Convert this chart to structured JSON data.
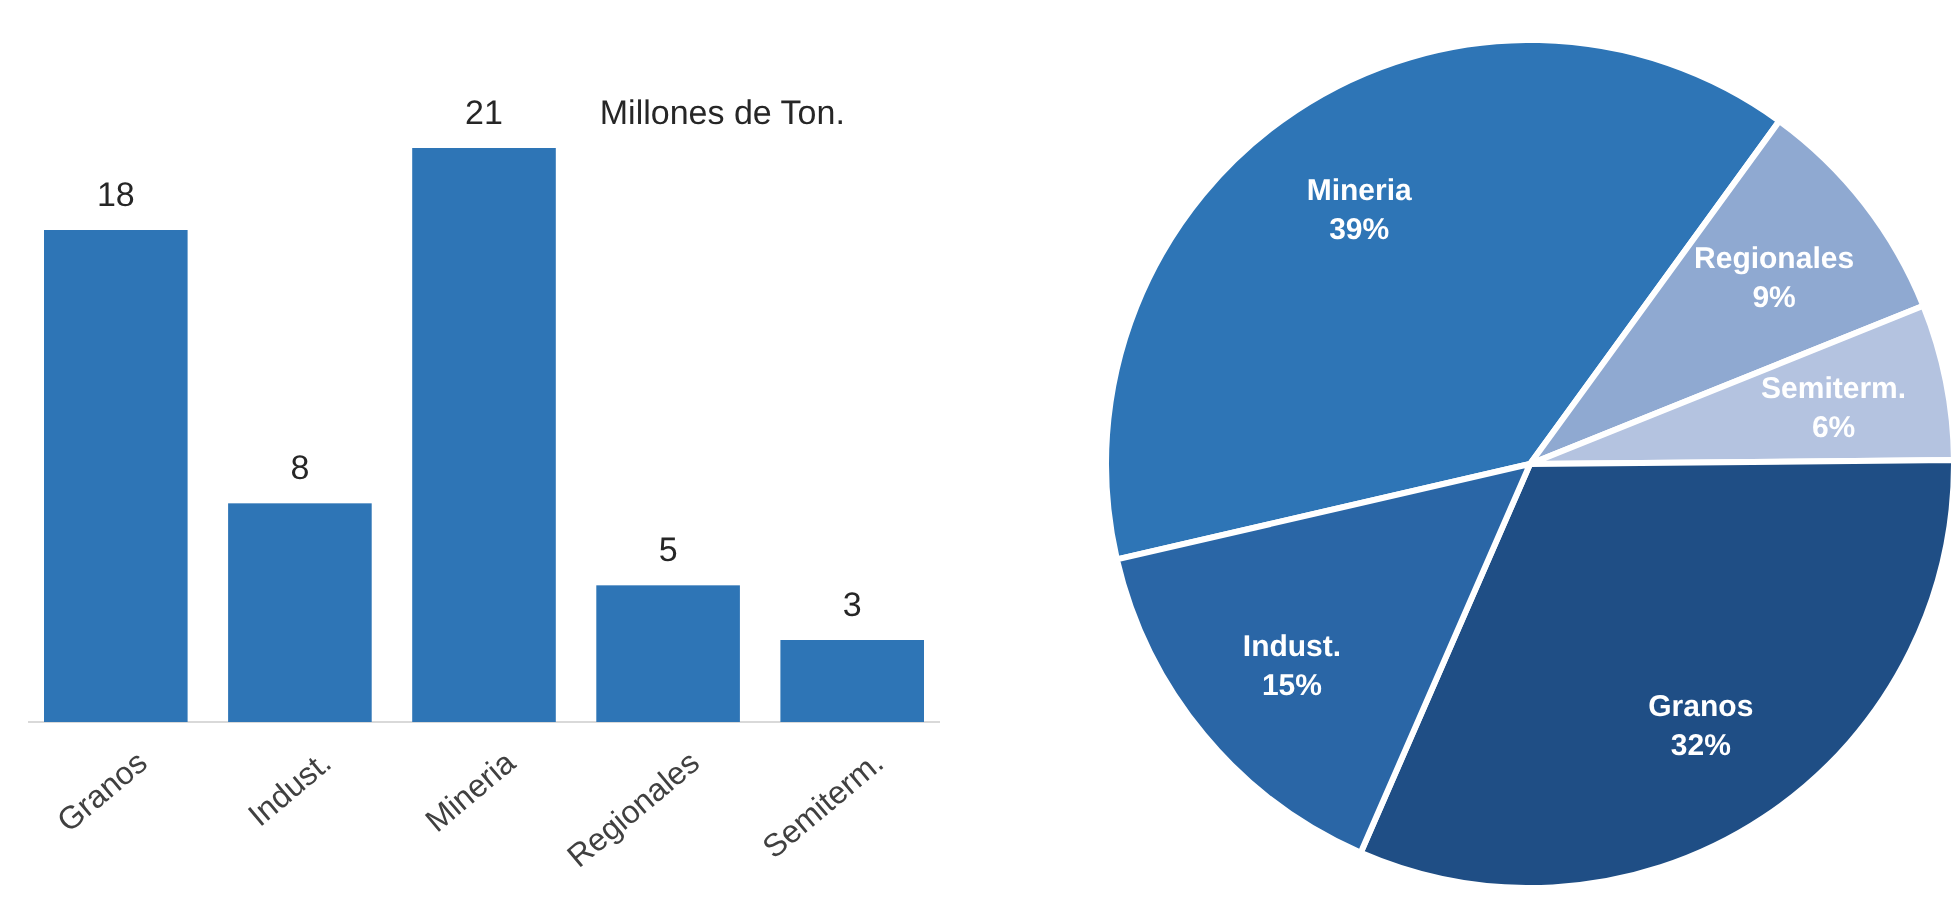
{
  "chart_data": [
    {
      "type": "bar",
      "categories": [
        "Granos",
        "Indust.",
        "Mineria",
        "Regionales",
        "Semiterm."
      ],
      "values": [
        18,
        8,
        21,
        5,
        3
      ],
      "color": "#2e75b6",
      "data_labels": true,
      "annotations": [
        "Millones de Ton."
      ]
    },
    {
      "type": "pie",
      "categories": [
        "Mineria",
        "Regionales",
        "Semiterm.",
        "Granos",
        "Indust."
      ],
      "values": [
        39,
        9,
        6,
        32,
        15
      ],
      "colors": [
        "#2e75b6",
        "#8fa9d1",
        "#b4c3e0",
        "#1f4e85",
        "#2a66a6"
      ],
      "value_labels": [
        "39%",
        "9%",
        "6%",
        "32%",
        "15%"
      ]
    }
  ]
}
